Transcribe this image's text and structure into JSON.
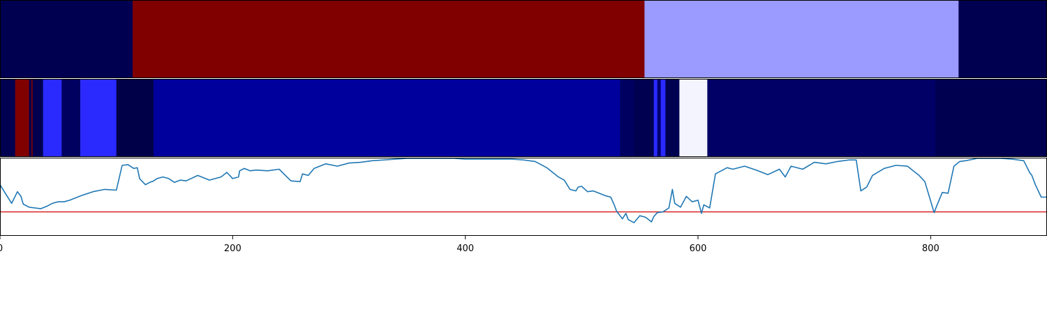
{
  "chart_data": [
    {
      "type": "heatmap",
      "panel": "top-strip",
      "xlim": [
        0,
        900
      ],
      "segments": [
        {
          "start": 0,
          "end": 114,
          "color": "#000050"
        },
        {
          "start": 114,
          "end": 554,
          "color": "#800000"
        },
        {
          "start": 554,
          "end": 824,
          "color": "#9a9aff"
        },
        {
          "start": 824,
          "end": 900,
          "color": "#000050"
        }
      ]
    },
    {
      "type": "heatmap",
      "panel": "middle-strip",
      "xlim": [
        0,
        900
      ],
      "segments": [
        {
          "start": 0,
          "end": 13,
          "color": "#000050"
        },
        {
          "start": 13,
          "end": 25,
          "color": "#800000"
        },
        {
          "start": 25,
          "end": 27,
          "color": "#000050"
        },
        {
          "start": 27,
          "end": 28,
          "color": "#800000"
        },
        {
          "start": 28,
          "end": 37,
          "color": "#000050"
        },
        {
          "start": 37,
          "end": 53,
          "color": "#2a2aff"
        },
        {
          "start": 53,
          "end": 69,
          "color": "#000060"
        },
        {
          "start": 69,
          "end": 100,
          "color": "#2a2aff"
        },
        {
          "start": 100,
          "end": 132,
          "color": "#000048"
        },
        {
          "start": 132,
          "end": 533,
          "color": "#00009d"
        },
        {
          "start": 533,
          "end": 545,
          "color": "#000060"
        },
        {
          "start": 545,
          "end": 562,
          "color": "#000050"
        },
        {
          "start": 562,
          "end": 565,
          "color": "#2a2aff"
        },
        {
          "start": 565,
          "end": 568,
          "color": "#000070"
        },
        {
          "start": 568,
          "end": 572,
          "color": "#2a2aff"
        },
        {
          "start": 572,
          "end": 584,
          "color": "#000050"
        },
        {
          "start": 584,
          "end": 608,
          "color": "#f4f4ff"
        },
        {
          "start": 608,
          "end": 804,
          "color": "#000066"
        },
        {
          "start": 804,
          "end": 900,
          "color": "#000050"
        }
      ]
    },
    {
      "type": "line",
      "panel": "line-plot",
      "xlim": [
        0,
        900
      ],
      "ylim": [
        0,
        1
      ],
      "xticks": [
        0,
        200,
        400,
        600,
        800
      ],
      "xticklabels": [
        "0",
        "200",
        "400",
        "600",
        "800"
      ],
      "line_color": "#1f77b4",
      "threshold": {
        "y": 0.31,
        "color": "#d62728"
      },
      "series": [
        {
          "x": [
            0,
            5,
            10,
            15,
            18,
            20,
            25,
            30,
            35,
            40,
            45,
            50,
            55,
            60,
            70,
            80,
            90,
            100,
            105,
            110,
            115,
            118,
            120,
            125,
            130,
            131,
            135,
            140,
            145,
            150,
            155,
            160,
            170,
            180,
            190,
            195,
            200,
            205,
            206,
            210,
            215,
            220,
            230,
            240,
            250,
            258,
            260,
            265,
            270,
            280,
            290,
            300,
            310,
            320,
            330,
            340,
            350,
            360,
            370,
            380,
            390,
            400,
            410,
            420,
            430,
            440,
            450,
            460,
            470,
            480,
            485,
            490,
            495,
            497,
            500,
            505,
            510,
            515,
            520,
            525,
            528,
            530,
            533,
            535,
            538,
            540,
            545,
            550,
            555,
            560,
            562,
            565,
            570,
            575,
            578,
            580,
            585,
            590,
            595,
            600,
            603,
            605,
            610,
            615,
            620,
            625,
            630,
            640,
            650,
            660,
            670,
            675,
            680,
            690,
            700,
            710,
            720,
            730,
            736,
            740,
            745,
            750,
            760,
            770,
            780,
            790,
            795,
            800,
            803,
            805,
            810,
            815,
            820,
            825,
            830,
            840,
            850,
            860,
            870,
            880,
            885,
            887,
            890,
            895,
            900
          ],
          "y": [
            0.66,
            0.54,
            0.42,
            0.57,
            0.51,
            0.41,
            0.37,
            0.36,
            0.35,
            0.38,
            0.42,
            0.44,
            0.44,
            0.46,
            0.52,
            0.57,
            0.6,
            0.59,
            0.91,
            0.92,
            0.87,
            0.88,
            0.74,
            0.66,
            0.7,
            0.7,
            0.74,
            0.76,
            0.74,
            0.69,
            0.72,
            0.71,
            0.78,
            0.72,
            0.76,
            0.82,
            0.74,
            0.76,
            0.84,
            0.87,
            0.84,
            0.85,
            0.84,
            0.86,
            0.71,
            0.7,
            0.8,
            0.78,
            0.87,
            0.93,
            0.9,
            0.94,
            0.95,
            0.97,
            0.98,
            0.99,
            1.0,
            1.0,
            1.0,
            1.0,
            1.0,
            0.99,
            0.99,
            0.99,
            0.99,
            0.99,
            0.98,
            0.96,
            0.88,
            0.76,
            0.72,
            0.6,
            0.58,
            0.63,
            0.64,
            0.57,
            0.58,
            0.55,
            0.52,
            0.5,
            0.4,
            0.32,
            0.26,
            0.22,
            0.29,
            0.21,
            0.17,
            0.26,
            0.24,
            0.18,
            0.25,
            0.3,
            0.31,
            0.36,
            0.6,
            0.42,
            0.37,
            0.51,
            0.44,
            0.46,
            0.29,
            0.4,
            0.36,
            0.8,
            0.84,
            0.88,
            0.86,
            0.9,
            0.85,
            0.79,
            0.86,
            0.76,
            0.9,
            0.86,
            0.95,
            0.93,
            0.96,
            0.98,
            0.98,
            0.58,
            0.63,
            0.78,
            0.87,
            0.91,
            0.9,
            0.78,
            0.7,
            0.45,
            0.3,
            0.38,
            0.56,
            0.55,
            0.9,
            0.96,
            0.97,
            1.0,
            1.0,
            1.0,
            0.99,
            0.97,
            0.82,
            0.78,
            0.66,
            0.5,
            0.5
          ]
        }
      ]
    }
  ]
}
